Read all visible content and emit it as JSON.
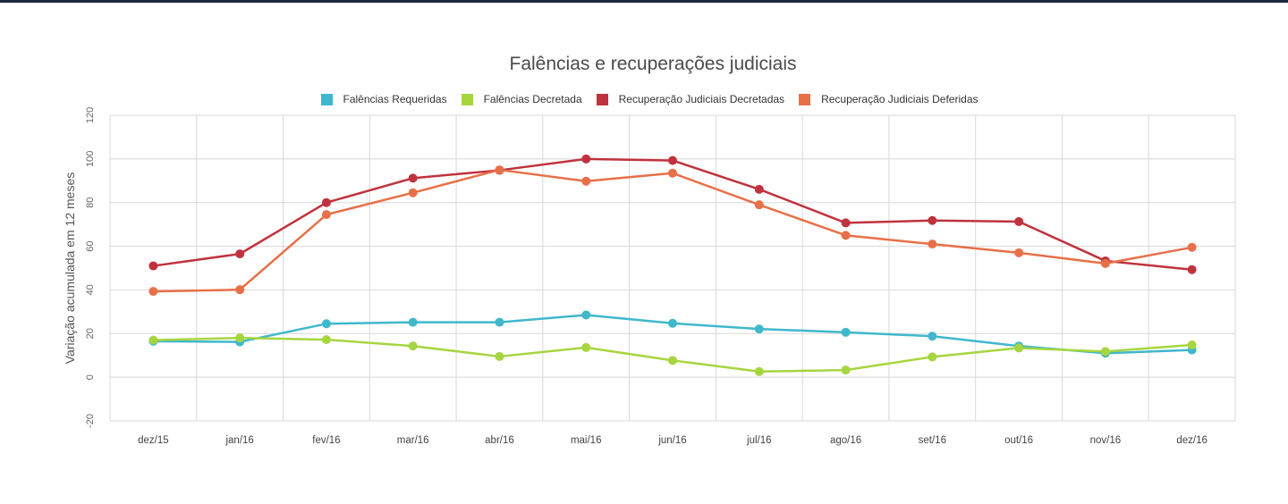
{
  "chart_data": {
    "type": "line",
    "title": "Falências e recuperações judiciais",
    "xlabel": "",
    "ylabel": "Variação acumulada em 12 meses",
    "ylim": [
      -20,
      120
    ],
    "yticks": [
      "-20",
      "0",
      "20",
      "40",
      "60",
      "80",
      "100",
      "120"
    ],
    "grid": true,
    "legend_position": "top-center",
    "categories": [
      "dez/15",
      "jan/16",
      "fev/16",
      "mar/16",
      "abr/16",
      "mai/16",
      "jun/16",
      "jul/16",
      "ago/16",
      "set/16",
      "out/16",
      "nov/16",
      "dez/16"
    ],
    "series": [
      {
        "name": "Falências Requeridas",
        "color": "#3fb8cc",
        "values": [
          16.5,
          16.2,
          24.5,
          25.2,
          25.2,
          28.5,
          24.7,
          22.1,
          20.6,
          18.8,
          14.3,
          11.0,
          12.5
        ]
      },
      {
        "name": "Falências Decretada",
        "color": "#a6d63f",
        "values": [
          17.0,
          18.0,
          17.2,
          14.3,
          9.5,
          13.6,
          7.7,
          2.6,
          3.3,
          9.3,
          13.4,
          11.8,
          14.8
        ]
      },
      {
        "name": "Recuperação Judiciais Decretadas",
        "color": "#c0323d",
        "values": [
          51.0,
          56.5,
          80.0,
          91.2,
          94.8,
          100.0,
          99.3,
          86.1,
          70.7,
          71.8,
          71.3,
          53.3,
          49.3
        ]
      },
      {
        "name": "Recuperação Judiciais Deferidas",
        "color": "#e87048",
        "values": [
          39.3,
          40.1,
          74.5,
          84.5,
          95.0,
          89.8,
          93.5,
          79.0,
          65.0,
          61.0,
          57.0,
          52.1,
          59.5
        ]
      }
    ]
  }
}
